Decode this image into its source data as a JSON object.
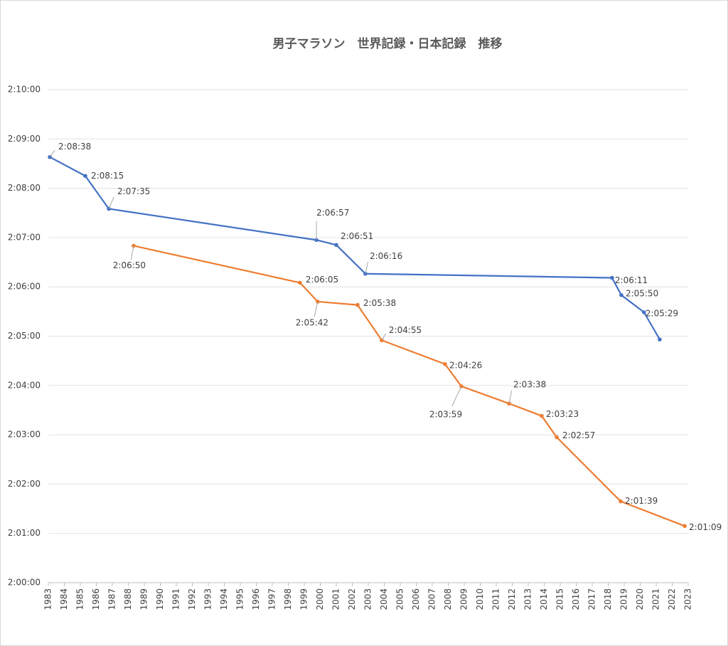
{
  "chart_data": {
    "type": "line",
    "title": "男子マラソン　世界記録・日本記録　推移",
    "xlim": [
      1983,
      2023
    ],
    "xticks": [
      1983,
      1984,
      1985,
      1986,
      1987,
      1988,
      1989,
      1990,
      1991,
      1992,
      1993,
      1994,
      1995,
      1996,
      1997,
      1998,
      1999,
      2000,
      2001,
      2002,
      2003,
      2004,
      2005,
      2006,
      2007,
      2008,
      2009,
      2010,
      2011,
      2012,
      2013,
      2014,
      2015,
      2016,
      2017,
      2018,
      2019,
      2020,
      2021,
      2022,
      2023
    ],
    "ylim": [
      7200,
      7800
    ],
    "yticks": [
      {
        "value": 7200,
        "label": "2:00:00"
      },
      {
        "value": 7260,
        "label": "2:01:00"
      },
      {
        "value": 7320,
        "label": "2:02:00"
      },
      {
        "value": 7380,
        "label": "2:03:00"
      },
      {
        "value": 7440,
        "label": "2:04:00"
      },
      {
        "value": 7500,
        "label": "2:05:00"
      },
      {
        "value": 7560,
        "label": "2:06:00"
      },
      {
        "value": 7620,
        "label": "2:07:00"
      },
      {
        "value": 7680,
        "label": "2:08:00"
      },
      {
        "value": 7740,
        "label": "2:09:00"
      },
      {
        "value": 7800,
        "label": "2:10:00"
      }
    ],
    "grid": true,
    "series": [
      {
        "color": "#4472c4",
        "x": [
          1983.09,
          1985.31,
          1986.78,
          1999.76,
          2001.0,
          2002.82,
          2018.24,
          2018.82,
          2020.24,
          2021.22
        ],
        "values": [
          7718,
          7695,
          7655,
          7617,
          7611,
          7576,
          7571,
          7550,
          7529,
          7496
        ],
        "value_labels": [
          "2:08:38",
          "2:08:15",
          "2:07:35",
          "2:06:57",
          "2:06:51",
          "2:06:16",
          "2:06:11",
          "2:05:50",
          "2:05:29",
          null
        ]
      },
      {
        "color": "#ed7d31",
        "x": [
          1988.33,
          1998.73,
          1999.84,
          2002.33,
          2003.84,
          2007.8,
          2008.82,
          2011.8,
          2013.84,
          2014.78,
          2018.78,
          2022.78
        ],
        "values": [
          7610,
          7565,
          7542,
          7538,
          7495,
          7466,
          7439,
          7418,
          7403,
          7377,
          7299,
          7269
        ],
        "value_labels": [
          "2:06:50",
          "2:06:05",
          "2:05:42",
          "2:05:38",
          "2:04:55",
          "2:04:26",
          "2:03:59",
          "2:03:38",
          "2:03:23",
          "2:02:57",
          "2:01:39",
          "2:01:09"
        ]
      }
    ]
  }
}
